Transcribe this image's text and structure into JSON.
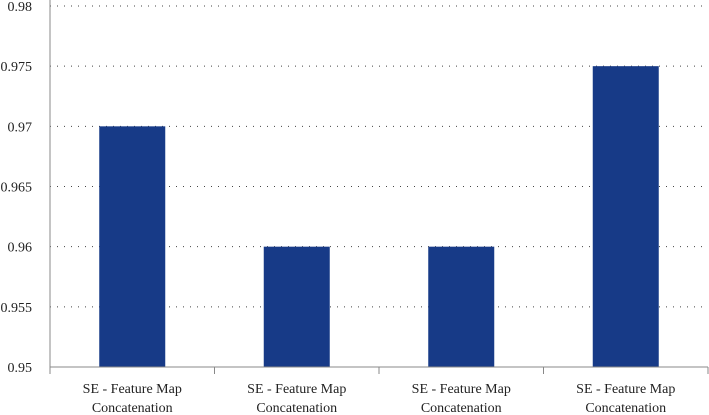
{
  "chart_data": {
    "type": "bar",
    "categories": [
      [
        "SE - Feature Map",
        "Concatenation"
      ],
      [
        "SE - Feature Map",
        "Concatenation"
      ],
      [
        "SE - Feature Map",
        "Concatenation"
      ],
      [
        "SE - Feature Map",
        "Concatenation"
      ]
    ],
    "values": [
      0.97,
      0.96,
      0.96,
      0.975
    ],
    "ylim": [
      0.95,
      0.98
    ],
    "yticks": [
      0.95,
      0.955,
      0.96,
      0.965,
      0.97,
      0.975,
      0.98
    ],
    "ytick_labels": [
      "0.95",
      "0.955",
      "0.96",
      "0.965",
      "0.97",
      "0.975",
      "0.98"
    ],
    "grid": "horizontal-dotted",
    "bar_color": "#173a87",
    "title": "",
    "xlabel": "",
    "ylabel": ""
  }
}
